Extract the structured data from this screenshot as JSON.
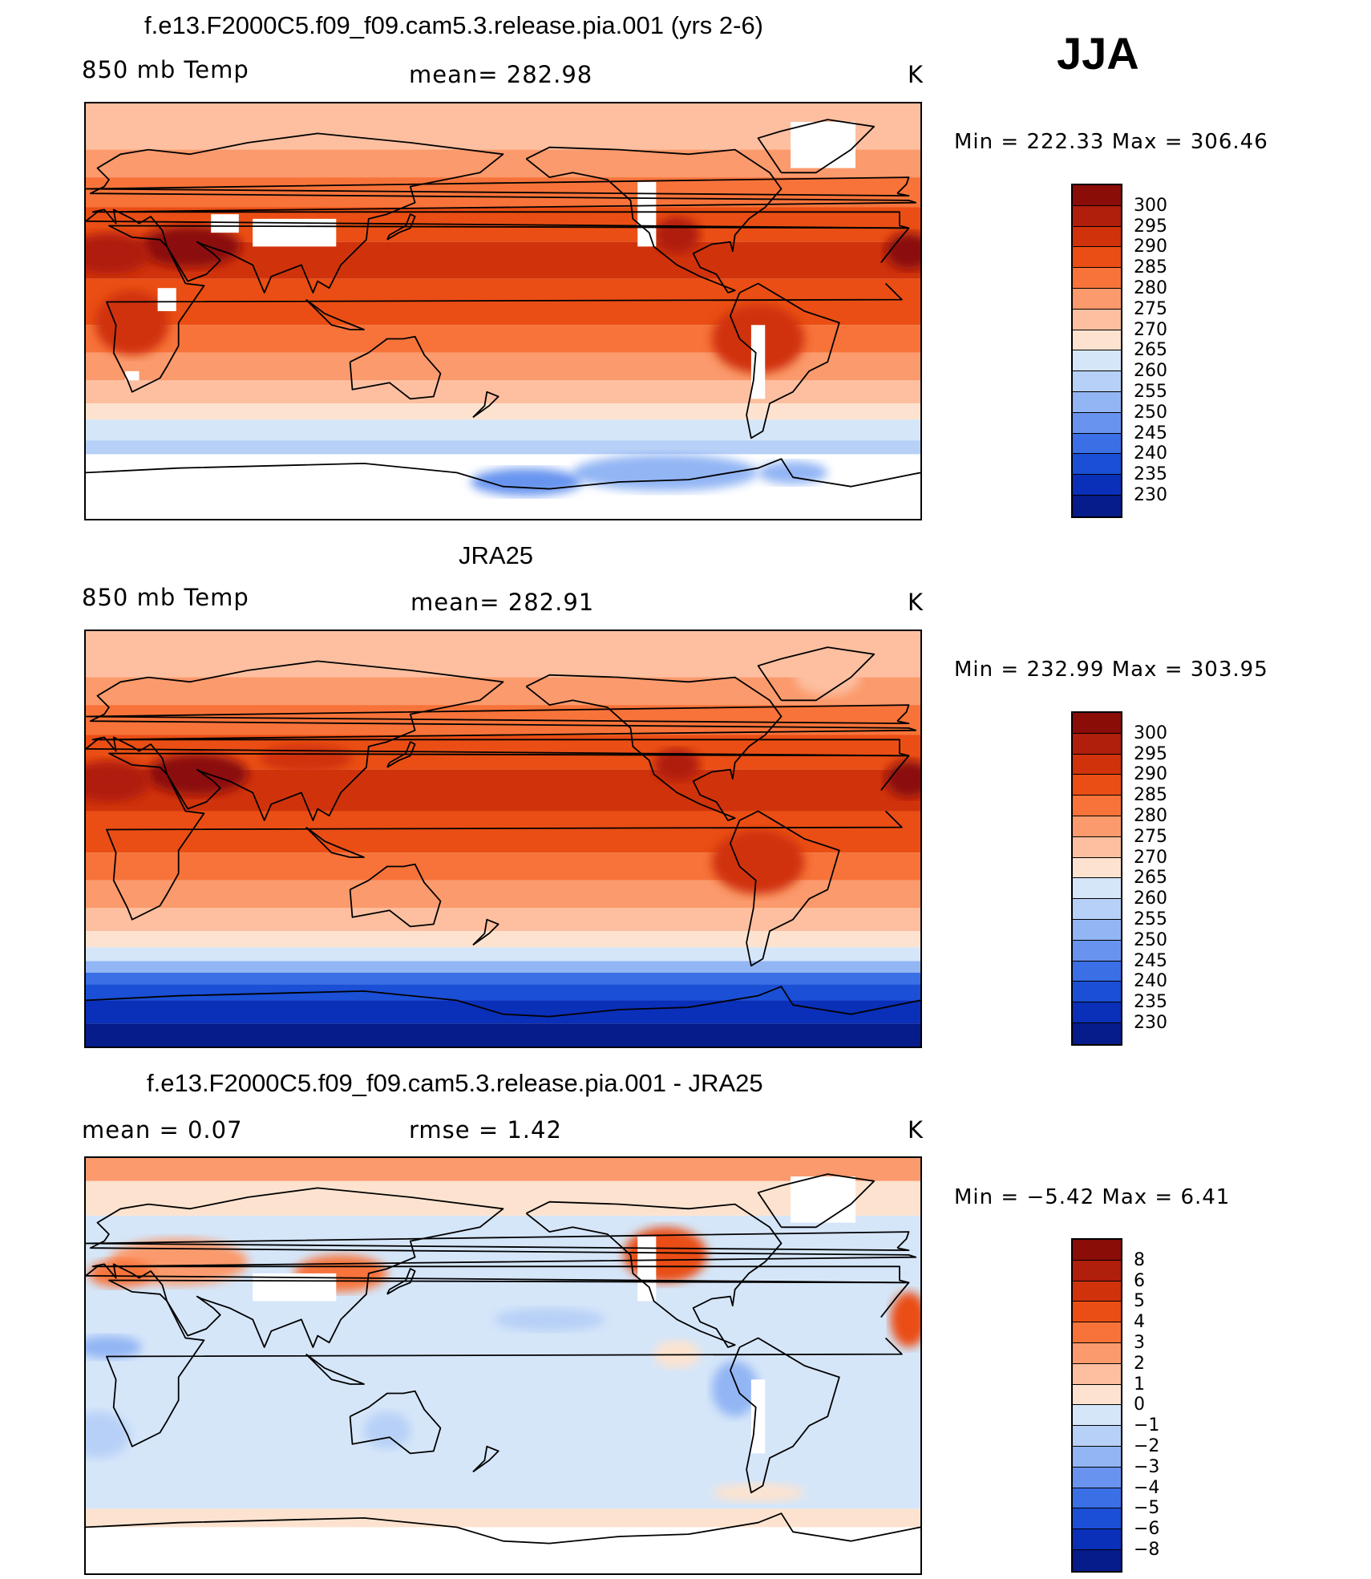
{
  "season": "JJA",
  "panels": [
    {
      "id": "model",
      "title": "f.e13.F2000C5.f09_f09.cam5.3.release.pia.001 (yrs 2-6)",
      "left_label": "850 mb Temp",
      "center_label": "mean=  282.98",
      "right_label": "K",
      "minmax": "Min  =  222.33  Max  =  306.46",
      "colorbar": {
        "labels": [
          "300",
          "295",
          "290",
          "285",
          "280",
          "275",
          "270",
          "265",
          "260",
          "255",
          "250",
          "245",
          "240",
          "235",
          "230"
        ],
        "colors": [
          "#8b0d08",
          "#b01e0c",
          "#d0330c",
          "#ea4e14",
          "#f7733a",
          "#fb9a6c",
          "#fdbfa0",
          "#fde3cf",
          "#d5e6f9",
          "#b7d0f7",
          "#92b5f4",
          "#6894ef",
          "#3a6fe6",
          "#1a4fd6",
          "#0a2fb8",
          "#061c8a"
        ]
      },
      "field": {
        "bands": [
          {
            "lat_to": 70,
            "color": "#fdbfa0"
          },
          {
            "lat_to": 58,
            "color": "#fb9a6c"
          },
          {
            "lat_to": 45,
            "color": "#f7733a"
          },
          {
            "lat_to": 30,
            "color": "#ea4e14"
          },
          {
            "lat_to": 14,
            "color": "#d0330c"
          },
          {
            "lat_to": -6,
            "color": "#ea4e14"
          },
          {
            "lat_to": -18,
            "color": "#f7733a"
          },
          {
            "lat_to": -30,
            "color": "#fb9a6c"
          },
          {
            "lat_to": -40,
            "color": "#fdbfa0"
          },
          {
            "lat_to": -47,
            "color": "#fde3cf"
          },
          {
            "lat_to": -56,
            "color": "#d5e6f9"
          },
          {
            "lat_to": -62,
            "color": "#b7d0f7"
          },
          {
            "lat_to": -90,
            "color": "#ffffff"
          }
        ],
        "blobs": [
          {
            "lon": 45,
            "lat": 28,
            "rx": 22,
            "ry": 9,
            "color": "#8b0d08"
          },
          {
            "lon": 10,
            "lat": 25,
            "rx": 18,
            "ry": 9,
            "color": "#b01e0c"
          },
          {
            "lon": 355,
            "lat": 26,
            "rx": 10,
            "ry": 8,
            "color": "#8b0d08"
          },
          {
            "lon": 255,
            "lat": 33,
            "rx": 10,
            "ry": 8,
            "color": "#b01e0c"
          },
          {
            "lon": 290,
            "lat": -12,
            "rx": 20,
            "ry": 15,
            "color": "#d0330c"
          },
          {
            "lon": 20,
            "lat": -5,
            "rx": 16,
            "ry": 14,
            "color": "#d0330c"
          },
          {
            "lon": 250,
            "lat": -70,
            "rx": 40,
            "ry": 8,
            "color": "#92b5f4"
          },
          {
            "lon": 190,
            "lat": -74,
            "rx": 24,
            "ry": 6,
            "color": "#6894ef"
          },
          {
            "lon": 305,
            "lat": -70,
            "rx": 15,
            "ry": 5,
            "color": "#92b5f4"
          }
        ],
        "missing": [
          {
            "lon": 90,
            "lat": 34,
            "rx": 18,
            "ry": 6
          },
          {
            "lon": 60,
            "lat": 38,
            "rx": 6,
            "ry": 4
          },
          {
            "lon": 242,
            "lat": 42,
            "rx": 4,
            "ry": 14
          },
          {
            "lon": 290,
            "lat": -22,
            "rx": 3,
            "ry": 16
          },
          {
            "lon": 318,
            "lat": 72,
            "rx": 14,
            "ry": 10
          },
          {
            "lon": 35,
            "lat": 5,
            "rx": 4,
            "ry": 5
          },
          {
            "lon": 20,
            "lat": -28,
            "rx": 3,
            "ry": 2
          }
        ]
      }
    },
    {
      "id": "obs",
      "title": "JRA25",
      "left_label": "850 mb Temp",
      "center_label": "mean=  282.91",
      "right_label": "K",
      "minmax": "Min  =  232.99  Max  =  303.95",
      "colorbar": {
        "labels": [
          "300",
          "295",
          "290",
          "285",
          "280",
          "275",
          "270",
          "265",
          "260",
          "255",
          "250",
          "245",
          "240",
          "235",
          "230"
        ],
        "colors": [
          "#8b0d08",
          "#b01e0c",
          "#d0330c",
          "#ea4e14",
          "#f7733a",
          "#fb9a6c",
          "#fdbfa0",
          "#fde3cf",
          "#d5e6f9",
          "#b7d0f7",
          "#92b5f4",
          "#6894ef",
          "#3a6fe6",
          "#1a4fd6",
          "#0a2fb8",
          "#061c8a"
        ]
      },
      "field": {
        "bands": [
          {
            "lat_to": 70,
            "color": "#fdbfa0"
          },
          {
            "lat_to": 58,
            "color": "#fb9a6c"
          },
          {
            "lat_to": 45,
            "color": "#f7733a"
          },
          {
            "lat_to": 30,
            "color": "#ea4e14"
          },
          {
            "lat_to": 12,
            "color": "#d0330c"
          },
          {
            "lat_to": -6,
            "color": "#ea4e14"
          },
          {
            "lat_to": -18,
            "color": "#f7733a"
          },
          {
            "lat_to": -30,
            "color": "#fb9a6c"
          },
          {
            "lat_to": -40,
            "color": "#fdbfa0"
          },
          {
            "lat_to": -47,
            "color": "#fde3cf"
          },
          {
            "lat_to": -53,
            "color": "#d5e6f9"
          },
          {
            "lat_to": -58,
            "color": "#92b5f4"
          },
          {
            "lat_to": -63,
            "color": "#3a6fe6"
          },
          {
            "lat_to": -70,
            "color": "#1a4fd6"
          },
          {
            "lat_to": -80,
            "color": "#0a2fb8"
          },
          {
            "lat_to": -90,
            "color": "#061c8a"
          }
        ],
        "blobs": [
          {
            "lon": 48,
            "lat": 28,
            "rx": 22,
            "ry": 9,
            "color": "#8b0d08"
          },
          {
            "lon": 10,
            "lat": 25,
            "rx": 18,
            "ry": 9,
            "color": "#b01e0c"
          },
          {
            "lon": 355,
            "lat": 26,
            "rx": 10,
            "ry": 8,
            "color": "#8b0d08"
          },
          {
            "lon": 255,
            "lat": 32,
            "rx": 10,
            "ry": 7,
            "color": "#b01e0c"
          },
          {
            "lon": 95,
            "lat": 35,
            "rx": 20,
            "ry": 6,
            "color": "#d0330c"
          },
          {
            "lon": 290,
            "lat": -10,
            "rx": 20,
            "ry": 14,
            "color": "#d0330c"
          },
          {
            "lon": 320,
            "lat": 70,
            "rx": 14,
            "ry": 8,
            "color": "#fdbfa0"
          }
        ],
        "missing": []
      }
    },
    {
      "id": "diff",
      "title": "f.e13.F2000C5.f09_f09.cam5.3.release.pia.001 - JRA25",
      "left_label": "mean =      0.07",
      "center_label": "rmse =      1.42",
      "right_label": "K",
      "minmax": "Min  =    −5.42  Max  =      6.41",
      "colorbar": {
        "labels": [
          "8",
          "6",
          "5",
          "4",
          "3",
          "2",
          "1",
          "0",
          "−1",
          "−2",
          "−3",
          "−4",
          "−5",
          "−6",
          "−8"
        ],
        "colors": [
          "#8b0d08",
          "#b01e0c",
          "#d0330c",
          "#ea4e14",
          "#f7733a",
          "#fb9a6c",
          "#fdbfa0",
          "#fde3cf",
          "#d5e6f9",
          "#b7d0f7",
          "#92b5f4",
          "#6894ef",
          "#3a6fe6",
          "#1a4fd6",
          "#0a2fb8",
          "#061c8a"
        ]
      },
      "field": {
        "bands": [
          {
            "lat_to": 80,
            "color": "#fb9a6c"
          },
          {
            "lat_to": 65,
            "color": "#fde3cf"
          },
          {
            "lat_to": 45,
            "color": "#d5e6f9"
          },
          {
            "lat_to": -62,
            "color": "#d5e6f9"
          },
          {
            "lat_to": -70,
            "color": "#fde3cf"
          },
          {
            "lat_to": -90,
            "color": "#ffffff"
          }
        ],
        "blobs": [
          {
            "lon": 40,
            "lat": 45,
            "rx": 30,
            "ry": 10,
            "color": "#fb9a6c"
          },
          {
            "lon": 110,
            "lat": 40,
            "rx": 20,
            "ry": 8,
            "color": "#f7733a"
          },
          {
            "lon": 250,
            "lat": 48,
            "rx": 18,
            "ry": 12,
            "color": "#ea4e14"
          },
          {
            "lon": 355,
            "lat": 20,
            "rx": 8,
            "ry": 12,
            "color": "#ea4e14"
          },
          {
            "lon": 15,
            "lat": 40,
            "rx": 14,
            "ry": 6,
            "color": "#f7733a"
          },
          {
            "lon": 10,
            "lat": 8,
            "rx": 14,
            "ry": 5,
            "color": "#92b5f4"
          },
          {
            "lon": 200,
            "lat": 20,
            "rx": 24,
            "ry": 5,
            "color": "#b7d0f7"
          },
          {
            "lon": 130,
            "lat": -28,
            "rx": 10,
            "ry": 8,
            "color": "#b7d0f7"
          },
          {
            "lon": 280,
            "lat": -10,
            "rx": 10,
            "ry": 12,
            "color": "#92b5f4"
          },
          {
            "lon": 5,
            "lat": -30,
            "rx": 14,
            "ry": 10,
            "color": "#b7d0f7"
          },
          {
            "lon": 290,
            "lat": -55,
            "rx": 20,
            "ry": 4,
            "color": "#fde3cf"
          },
          {
            "lon": 255,
            "lat": 5,
            "rx": 10,
            "ry": 6,
            "color": "#fde3cf"
          }
        ],
        "missing": [
          {
            "lon": 90,
            "lat": 34,
            "rx": 18,
            "ry": 6
          },
          {
            "lon": 242,
            "lat": 42,
            "rx": 4,
            "ry": 14
          },
          {
            "lon": 290,
            "lat": -22,
            "rx": 3,
            "ry": 16
          },
          {
            "lon": 318,
            "lat": 72,
            "rx": 14,
            "ry": 10
          }
        ]
      }
    }
  ]
}
